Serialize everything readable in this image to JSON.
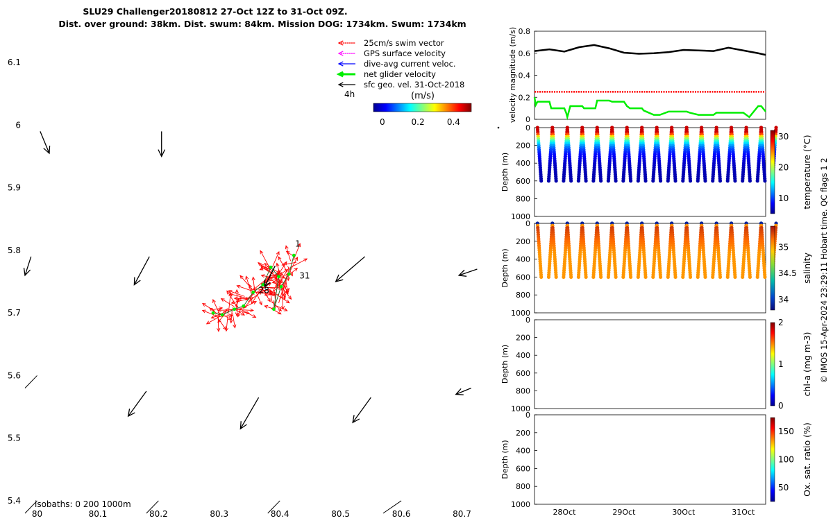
{
  "title": {
    "line1": "SLU29 Challenger20180812 27-Oct 12Z to 31-Oct 09Z.",
    "line2": "Dist. over ground: 38km. Dist. swum: 84km. Mission DOG: 1734km. Swum: 1734km"
  },
  "colors": {
    "swim": "#ff0000",
    "gps": "#ff00ff",
    "current": "#0000ff",
    "net": "#00ee00",
    "geo": "#000000"
  },
  "chart_data": [
    {
      "id": "map",
      "type": "scatter",
      "xlim": [
        79.98,
        80.76
      ],
      "ylim": [
        5.38,
        6.15
      ],
      "x_ticks": [
        "80",
        "80.1",
        "80.2",
        "80.3",
        "80.4",
        "80.5",
        "80.6",
        "80.7"
      ],
      "y_ticks": [
        "5.4",
        "5.5",
        "5.6",
        "5.7",
        "5.8",
        "5.9",
        "6",
        "6.1"
      ],
      "legend": [
        {
          "label": "25cm/s swim vector",
          "color": "#ff0000",
          "dashed": true
        },
        {
          "label": "GPS surface velocity",
          "color": "#ff00ff",
          "dashed": true
        },
        {
          "label": "dive-avg current veloc.",
          "color": "#0000ff",
          "dashed": false
        },
        {
          "label": "net glider velocity",
          "color": "#00ee00",
          "dashed": false,
          "thick": true
        },
        {
          "label": "sfc geo. vel. 31-Oct-2018",
          "color": "#000000",
          "dashed": false
        }
      ],
      "legend_placement": "top-right",
      "time_label": "4h",
      "colorbar": {
        "label": "(m/s)",
        "ticks": [
          "0",
          "0.2",
          "0.4"
        ],
        "range": [
          -0.05,
          0.5
        ]
      },
      "isobaths_label": "isobaths: 0   200  1000m",
      "point_labels": [
        {
          "text": "1",
          "x": 80.425,
          "y": 5.806
        },
        {
          "text": "28",
          "x": 80.365,
          "y": 5.732
        },
        {
          "text": "31",
          "x": 80.432,
          "y": 5.755
        }
      ],
      "track": [
        [
          80.29,
          5.7
        ],
        [
          80.305,
          5.697
        ],
        [
          80.325,
          5.706
        ],
        [
          80.34,
          5.711
        ],
        [
          80.356,
          5.733
        ],
        [
          80.372,
          5.745
        ],
        [
          80.385,
          5.773
        ],
        [
          80.398,
          5.758
        ],
        [
          80.39,
          5.706
        ],
        [
          80.402,
          5.742
        ],
        [
          80.415,
          5.762
        ],
        [
          80.423,
          5.792
        ]
      ],
      "geo_arrows": [
        {
          "x": 80.005,
          "y": 5.99,
          "u": 0.015,
          "v": -0.035
        },
        {
          "x": 80.205,
          "y": 5.99,
          "u": 0.0,
          "v": -0.04
        },
        {
          "x": 80.185,
          "y": 5.79,
          "u": -0.025,
          "v": -0.045
        },
        {
          "x": 80.54,
          "y": 5.79,
          "u": -0.048,
          "v": -0.04
        },
        {
          "x": 80.725,
          "y": 5.77,
          "u": -0.03,
          "v": -0.01
        },
        {
          "x": 79.99,
          "y": 5.79,
          "u": -0.01,
          "v": -0.03
        },
        {
          "x": 80.18,
          "y": 5.575,
          "u": -0.03,
          "v": -0.04
        },
        {
          "x": 80.365,
          "y": 5.565,
          "u": -0.03,
          "v": -0.05
        },
        {
          "x": 80.55,
          "y": 5.565,
          "u": -0.03,
          "v": -0.04
        },
        {
          "x": 80.715,
          "y": 5.58,
          "u": -0.025,
          "v": -0.01
        }
      ],
      "isobath_segments": [
        [
          [
            79.98,
            5.58
          ],
          [
            80.0,
            5.6
          ]
        ],
        [
          [
            79.98,
            5.38
          ],
          [
            80.0,
            5.4
          ]
        ],
        [
          [
            80.18,
            5.38
          ],
          [
            80.2,
            5.4
          ]
        ],
        [
          [
            80.38,
            5.38
          ],
          [
            80.4,
            5.4
          ]
        ],
        [
          [
            80.57,
            5.38
          ],
          [
            80.6,
            5.4
          ]
        ]
      ]
    },
    {
      "id": "velocity",
      "type": "line",
      "ylabel": "velocity magnitude (m/s)",
      "ylim": [
        0,
        0.8
      ],
      "y_ticks": [
        0,
        0.2,
        0.4,
        0.6,
        0.8
      ],
      "x_range_days": [
        27.5,
        31.375
      ],
      "series": [
        {
          "color": "#000000",
          "x": [
            27.5,
            27.75,
            28.0,
            28.25,
            28.5,
            28.75,
            29.0,
            29.25,
            29.5,
            29.75,
            30.0,
            30.25,
            30.5,
            30.75,
            31.0,
            31.25,
            31.375
          ],
          "values": [
            0.62,
            0.635,
            0.615,
            0.655,
            0.675,
            0.645,
            0.605,
            0.595,
            0.6,
            0.61,
            0.63,
            0.625,
            0.62,
            0.65,
            0.625,
            0.6,
            0.585
          ]
        },
        {
          "color": "#ff0000",
          "dashed": true,
          "x": [
            27.5,
            31.375
          ],
          "values": [
            0.25,
            0.25
          ]
        },
        {
          "color": "#00ee00",
          "x": [
            27.5,
            27.52,
            27.55,
            27.6,
            27.75,
            27.78,
            28.0,
            28.03,
            28.05,
            28.1,
            28.3,
            28.33,
            28.5,
            28.52,
            28.55,
            28.75,
            28.8,
            29.0,
            29.05,
            29.1,
            29.3,
            29.33,
            29.5,
            29.55,
            29.6,
            29.75,
            29.8,
            30.0,
            30.05,
            30.1,
            30.25,
            30.3,
            30.5,
            30.55,
            30.6,
            30.75,
            30.8,
            31.0,
            31.05,
            31.1,
            31.25,
            31.3,
            31.375
          ],
          "values": [
            0.2,
            0.13,
            0.16,
            0.16,
            0.16,
            0.1,
            0.1,
            0.06,
            0.02,
            0.12,
            0.12,
            0.1,
            0.1,
            0.1,
            0.17,
            0.17,
            0.16,
            0.16,
            0.12,
            0.1,
            0.1,
            0.08,
            0.04,
            0.04,
            0.04,
            0.07,
            0.07,
            0.07,
            0.07,
            0.06,
            0.04,
            0.04,
            0.04,
            0.06,
            0.06,
            0.06,
            0.06,
            0.06,
            0.04,
            0.02,
            0.12,
            0.12,
            0.07
          ]
        }
      ]
    },
    {
      "id": "temperature",
      "type": "scatter",
      "ylabel": "Depth (m)",
      "ylim": [
        1000,
        0
      ],
      "y_ticks": [
        0,
        200,
        400,
        600,
        800,
        1000
      ],
      "cbar_label": "temperature (°C)",
      "cbar_range": [
        5,
        32
      ],
      "cbar_ticks": [
        10,
        20,
        30
      ],
      "profiles": {
        "first_day": 27.55,
        "spacing_days": 0.25,
        "count": 16,
        "max_depth": 600
      },
      "surface_value": 30,
      "deep_value": 6
    },
    {
      "id": "salinity",
      "type": "scatter",
      "ylabel": "Depth (m)",
      "ylim": [
        1000,
        0
      ],
      "y_ticks": [
        0,
        200,
        400,
        600,
        800,
        1000
      ],
      "cbar_label": "salinity",
      "cbar_range": [
        33.8,
        35.4
      ],
      "cbar_ticks": [
        34,
        34.5,
        35
      ],
      "profiles": {
        "first_day": 27.55,
        "spacing_days": 0.25,
        "count": 16,
        "max_depth": 600
      },
      "surface_value": 33.9,
      "deep_value": 35.05
    },
    {
      "id": "chla",
      "type": "scatter",
      "ylabel": "Depth (m)",
      "ylim": [
        1000,
        0
      ],
      "y_ticks": [
        0,
        200,
        400,
        600,
        800,
        1000
      ],
      "cbar_label": "chl-a (mg m-3)",
      "cbar_range": [
        0,
        2
      ],
      "cbar_ticks": [
        0,
        1,
        2
      ]
    },
    {
      "id": "oxygen",
      "type": "scatter",
      "ylabel": "Depth (m)",
      "ylim": [
        1000,
        0
      ],
      "y_ticks": [
        0,
        200,
        400,
        600,
        800,
        1000
      ],
      "cbar_label": "Ox. sat. ratio (%)",
      "cbar_range": [
        25,
        175
      ],
      "cbar_ticks": [
        50,
        100,
        150
      ],
      "x_ticks": [
        {
          "label": "28Oct",
          "day": 28
        },
        {
          "label": "29Oct",
          "day": 29
        },
        {
          "label": "30Oct",
          "day": 30
        },
        {
          "label": "31Oct",
          "day": 31
        }
      ]
    }
  ],
  "footer": "© IMOS 15-Apr-2024 23:29:11 Hobart time. QC flags 1  2"
}
